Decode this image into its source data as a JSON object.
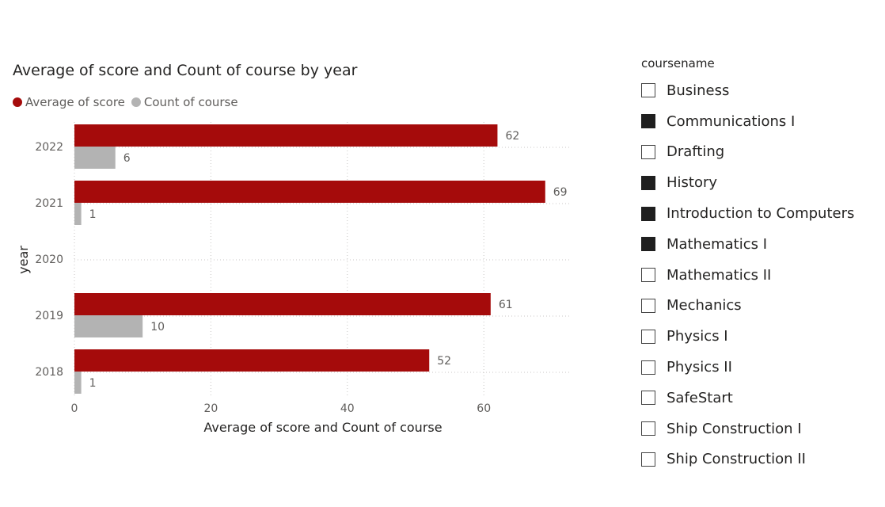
{
  "colors": {
    "score": "#a50b0b",
    "count": "#b3b3b3",
    "data_label": "#605e5c",
    "gridline": "#c8c6c4"
  },
  "chart": {
    "title": "Average of score and Count of course by year",
    "legend": [
      {
        "label": "Average of score",
        "color": "#a50b0b"
      },
      {
        "label": "Count of course",
        "color": "#b3b3b3"
      }
    ]
  },
  "chart_data": {
    "type": "bar",
    "orientation": "horizontal",
    "title": "Average of score and Count of course by year",
    "xlabel": "Average of score and Count of course",
    "ylabel": "year",
    "categories": [
      "2022",
      "2021",
      "2020",
      "2019",
      "2018"
    ],
    "series": [
      {
        "name": "Average of score",
        "values": [
          62,
          69,
          null,
          61,
          52
        ]
      },
      {
        "name": "Count of course",
        "values": [
          6,
          1,
          null,
          10,
          1
        ]
      }
    ],
    "data_labels": {
      "Average of score": [
        "62",
        "69",
        "",
        "61",
        "52"
      ],
      "Count of course": [
        "6",
        "1",
        "",
        "10",
        "1"
      ]
    },
    "xticks": [
      0,
      20,
      40,
      60
    ],
    "xlim": [
      0,
      72.5
    ],
    "grid": true,
    "legend_position": "top-left"
  },
  "slicer": {
    "title": "coursename",
    "items": [
      {
        "label": "Business",
        "checked": false
      },
      {
        "label": "Communications I",
        "checked": true
      },
      {
        "label": "Drafting",
        "checked": false
      },
      {
        "label": "History",
        "checked": true
      },
      {
        "label": "Introduction to Computers",
        "checked": true
      },
      {
        "label": "Mathematics I",
        "checked": true
      },
      {
        "label": "Mathematics II",
        "checked": false
      },
      {
        "label": "Mechanics",
        "checked": false
      },
      {
        "label": "Physics I",
        "checked": false
      },
      {
        "label": "Physics II",
        "checked": false
      },
      {
        "label": "SafeStart",
        "checked": false
      },
      {
        "label": "Ship Construction I",
        "checked": false
      },
      {
        "label": "Ship Construction II",
        "checked": false
      }
    ]
  }
}
